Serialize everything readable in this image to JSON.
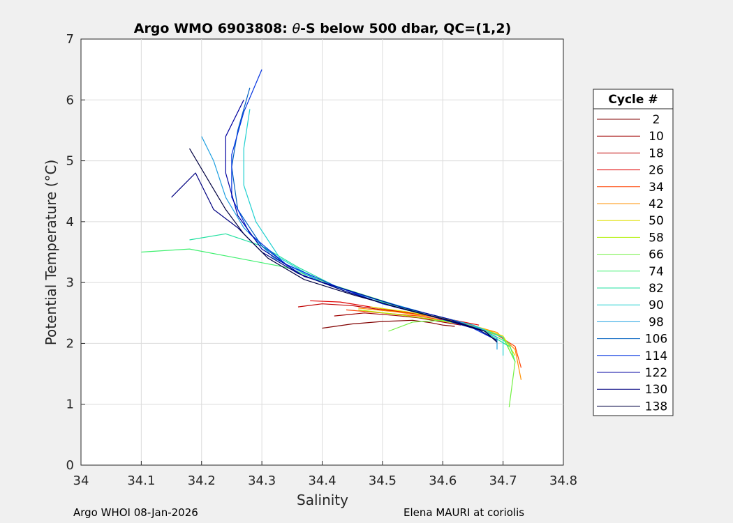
{
  "chart_data": {
    "type": "line",
    "title_prefix": "Argo WMO 6903808: ",
    "title_symbol": "θ",
    "title_suffix": "-S below 500 dbar,  QC=(1,2)",
    "xlabel": "Salinity",
    "ylabel": "Potential Temperature (°C)",
    "xlim": [
      34,
      34.8
    ],
    "ylim": [
      0,
      7
    ],
    "xticks": [
      "34",
      "34.1",
      "34.2",
      "34.3",
      "34.4",
      "34.5",
      "34.6",
      "34.7",
      "34.8"
    ],
    "yticks": [
      "0",
      "1",
      "2",
      "3",
      "4",
      "5",
      "6",
      "7"
    ],
    "grid": true,
    "legend_title": "Cycle #",
    "legend_position": "right-outside",
    "series": [
      {
        "name": "2",
        "color": "#800000",
        "x": [
          34.4,
          34.45,
          34.5,
          34.55,
          34.58,
          34.6,
          34.62
        ],
        "y": [
          2.25,
          2.32,
          2.36,
          2.38,
          2.34,
          2.3,
          2.28
        ]
      },
      {
        "name": "10",
        "color": "#a00000",
        "x": [
          34.42,
          34.47,
          34.52,
          34.56,
          34.6,
          34.63
        ],
        "y": [
          2.45,
          2.5,
          2.46,
          2.42,
          2.35,
          2.3
        ]
      },
      {
        "name": "18",
        "color": "#c00000",
        "x": [
          34.36,
          34.4,
          34.45,
          34.5,
          34.55,
          34.6,
          34.64
        ],
        "y": [
          2.6,
          2.65,
          2.62,
          2.55,
          2.5,
          2.4,
          2.32
        ]
      },
      {
        "name": "26",
        "color": "#e00000",
        "x": [
          34.38,
          34.43,
          34.48,
          34.53,
          34.58,
          34.62,
          34.66
        ],
        "y": [
          2.7,
          2.68,
          2.6,
          2.52,
          2.45,
          2.38,
          2.3
        ]
      },
      {
        "name": "34",
        "color": "#ff4000",
        "x": [
          34.44,
          34.5,
          34.56,
          34.62,
          34.68,
          34.72,
          34.73
        ],
        "y": [
          2.55,
          2.5,
          2.45,
          2.35,
          2.2,
          1.95,
          1.6
        ]
      },
      {
        "name": "42",
        "color": "#ff9000",
        "x": [
          34.46,
          34.52,
          34.58,
          34.64,
          34.69,
          34.72,
          34.73
        ],
        "y": [
          2.58,
          2.52,
          2.44,
          2.32,
          2.18,
          1.9,
          1.4
        ]
      },
      {
        "name": "50",
        "color": "#e0e000",
        "x": [
          34.48,
          34.54,
          34.6,
          34.65,
          34.7,
          34.72
        ],
        "y": [
          2.6,
          2.52,
          2.42,
          2.3,
          2.12,
          1.8
        ]
      },
      {
        "name": "58",
        "color": "#b0f000",
        "x": [
          34.46,
          34.52,
          34.58,
          34.64,
          34.7,
          34.72
        ],
        "y": [
          2.55,
          2.48,
          2.4,
          2.3,
          2.1,
          1.7
        ]
      },
      {
        "name": "66",
        "color": "#70f040",
        "x": [
          34.51,
          34.55,
          34.6,
          34.65,
          34.7,
          34.72,
          34.71
        ],
        "y": [
          2.2,
          2.35,
          2.38,
          2.3,
          2.1,
          1.7,
          0.95
        ]
      },
      {
        "name": "74",
        "color": "#40f070",
        "x": [
          34.1,
          34.18,
          34.26,
          34.34,
          34.42,
          34.5,
          34.58,
          34.66,
          34.71,
          34.72
        ],
        "y": [
          3.5,
          3.55,
          3.4,
          3.25,
          2.95,
          2.7,
          2.45,
          2.25,
          2.0,
          1.7
        ]
      },
      {
        "name": "82",
        "color": "#20e0a0",
        "x": [
          34.18,
          34.24,
          34.3,
          34.36,
          34.42,
          34.5,
          34.58,
          34.66,
          34.71
        ],
        "y": [
          3.7,
          3.8,
          3.6,
          3.25,
          2.95,
          2.68,
          2.45,
          2.25,
          1.95
        ]
      },
      {
        "name": "90",
        "color": "#20d0d0",
        "x": [
          34.28,
          34.27,
          34.27,
          34.29,
          34.33,
          34.4,
          34.48,
          34.57,
          34.65,
          34.7,
          34.7
        ],
        "y": [
          5.85,
          5.2,
          4.6,
          4.0,
          3.4,
          3.0,
          2.75,
          2.5,
          2.3,
          2.1,
          1.8
        ]
      },
      {
        "name": "98",
        "color": "#20a0e0",
        "x": [
          34.2,
          34.22,
          34.24,
          34.27,
          34.32,
          34.4,
          34.48,
          34.57,
          34.65,
          34.69,
          34.69
        ],
        "y": [
          5.4,
          5.0,
          4.4,
          3.9,
          3.4,
          3.0,
          2.75,
          2.5,
          2.3,
          2.1,
          1.9
        ]
      },
      {
        "name": "106",
        "color": "#0060c0",
        "x": [
          34.28,
          34.26,
          34.25,
          34.26,
          34.3,
          34.36,
          34.44,
          34.52,
          34.6,
          34.66,
          34.69
        ],
        "y": [
          6.2,
          5.5,
          4.9,
          4.2,
          3.6,
          3.15,
          2.85,
          2.6,
          2.4,
          2.22,
          2.05
        ]
      },
      {
        "name": "114",
        "color": "#0030e0",
        "x": [
          34.3,
          34.27,
          34.25,
          34.25,
          34.28,
          34.34,
          34.42,
          34.5,
          34.58,
          34.65,
          34.69
        ],
        "y": [
          6.5,
          5.8,
          5.1,
          4.4,
          3.8,
          3.3,
          2.95,
          2.65,
          2.45,
          2.25,
          2.05
        ]
      },
      {
        "name": "122",
        "color": "#0000a0",
        "x": [
          34.27,
          34.24,
          34.24,
          34.26,
          34.3,
          34.37,
          34.45,
          34.53,
          34.61,
          34.67,
          34.69
        ],
        "y": [
          6.0,
          5.4,
          4.8,
          4.1,
          3.55,
          3.1,
          2.85,
          2.6,
          2.4,
          2.2,
          2.02
        ]
      },
      {
        "name": "130",
        "color": "#000080",
        "x": [
          34.15,
          34.19,
          34.22,
          34.26,
          34.3,
          34.36,
          34.44,
          34.52,
          34.6,
          34.66,
          34.69
        ],
        "y": [
          4.4,
          4.8,
          4.2,
          3.9,
          3.5,
          3.15,
          2.85,
          2.6,
          2.4,
          2.22,
          2.05
        ]
      },
      {
        "name": "138",
        "color": "#000040",
        "x": [
          34.18,
          34.21,
          34.24,
          34.27,
          34.31,
          34.37,
          34.45,
          34.53,
          34.61,
          34.67,
          34.69
        ],
        "y": [
          5.2,
          4.7,
          4.2,
          3.8,
          3.4,
          3.05,
          2.8,
          2.58,
          2.38,
          2.2,
          2.02
        ]
      }
    ]
  },
  "footer": {
    "left": "Argo WHOI 08-Jan-2026",
    "right": "Elena MAURI at coriolis"
  }
}
